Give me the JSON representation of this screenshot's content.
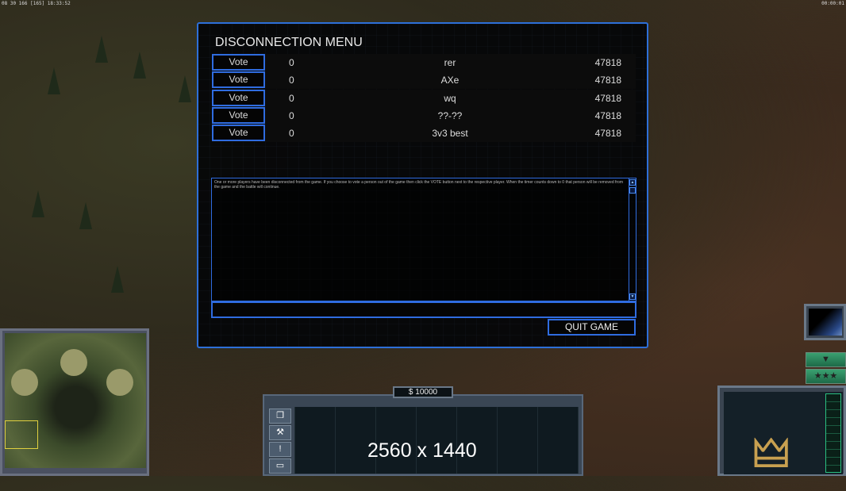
{
  "hud": {
    "top_left": "08 30 166 [165] 18:33:52",
    "top_right": "00:00:01"
  },
  "dialog": {
    "title": "DISCONNECTION MENU",
    "players": [
      {
        "vote": "Vote",
        "count": "0",
        "name": "rer",
        "ping": "47818"
      },
      {
        "vote": "Vote",
        "count": "0",
        "name": "AXe",
        "ping": "47818"
      },
      {
        "vote": "Vote",
        "count": "0",
        "name": "wq",
        "ping": "47818"
      },
      {
        "vote": "Vote",
        "count": "0",
        "name": "??-??",
        "ping": "47818"
      },
      {
        "vote": "Vote",
        "count": "0",
        "name": "3v3 best",
        "ping": "47818"
      }
    ],
    "message": "One or more players have been disconnected from the game. If you choose to vote a person out of the game then click the VOTE button next to the respective player. When the timer counts down to 0 that person will be removed from the game and the battle will continue.",
    "chat_value": "",
    "quit_label": "QUIT GAME",
    "scroll_up": "▲",
    "scroll_down": "▼"
  },
  "command_bar": {
    "money": "$ 10000",
    "overlay": "2560 x 1440",
    "icons": [
      "windows-icon",
      "wrench-icon",
      "alert-icon",
      "sign-icon"
    ]
  },
  "right_panel": {
    "down_arrow": "▼",
    "stars": "★★★"
  },
  "colors": {
    "accent": "#2f6ce0",
    "panel_bg": "#050608",
    "green_button": "#2a8a5c"
  }
}
